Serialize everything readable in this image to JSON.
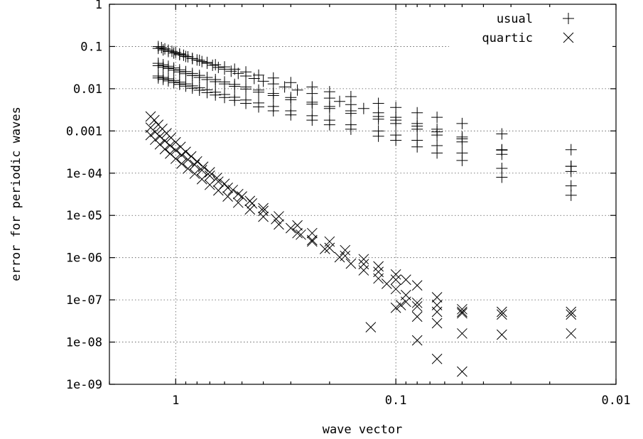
{
  "chart_data": {
    "type": "scatter",
    "xlabel": "wave vector",
    "ylabel": "error for periodic waves",
    "x_scale": "log",
    "x_reversed": true,
    "xlim": [
      2,
      0.01
    ],
    "y_scale": "log",
    "ylim": [
      1e-09,
      1
    ],
    "grid": true,
    "legend_position": "top-right",
    "x_ticks": [
      {
        "value": 1,
        "label": "1"
      },
      {
        "value": 0.1,
        "label": "0.1"
      },
      {
        "value": 0.01,
        "label": "0.01"
      }
    ],
    "y_ticks": [
      {
        "value": 1,
        "label": "1"
      },
      {
        "value": 0.1,
        "label": "0.1"
      },
      {
        "value": 0.01,
        "label": "0.01"
      },
      {
        "value": 0.001,
        "label": "0.001"
      },
      {
        "value": 0.0001,
        "label": "1e-04"
      },
      {
        "value": 1e-05,
        "label": "1e-05"
      },
      {
        "value": 1e-06,
        "label": "1e-06"
      },
      {
        "value": 1e-07,
        "label": "1e-07"
      },
      {
        "value": 1e-08,
        "label": "1e-08"
      },
      {
        "value": 1e-09,
        "label": "1e-09"
      }
    ],
    "series": [
      {
        "name": "usual",
        "marker": "plus",
        "points": [
          [
            1.2,
            0.1
          ],
          [
            1.16,
            0.094
          ],
          [
            1.12,
            0.088
          ],
          [
            1.08,
            0.082
          ],
          [
            1.04,
            0.077
          ],
          [
            1.0,
            0.072
          ],
          [
            0.96,
            0.067
          ],
          [
            0.92,
            0.062
          ],
          [
            0.88,
            0.057
          ],
          [
            0.84,
            0.052
          ],
          [
            0.8,
            0.048
          ],
          [
            0.76,
            0.044
          ],
          [
            0.72,
            0.04
          ],
          [
            0.68,
            0.036
          ],
          [
            0.64,
            0.032
          ],
          [
            0.6,
            0.029
          ],
          [
            0.56,
            0.026
          ],
          [
            0.52,
            0.023
          ],
          [
            0.48,
            0.02
          ],
          [
            0.44,
            0.0175
          ],
          [
            0.4,
            0.015
          ],
          [
            0.36,
            0.013
          ],
          [
            0.32,
            0.011
          ],
          [
            0.28,
            0.0093
          ],
          [
            0.24,
            0.0077
          ],
          [
            0.2,
            0.006
          ],
          [
            0.18,
            0.005
          ],
          [
            0.16,
            0.0042
          ],
          [
            0.14,
            0.0034
          ],
          [
            0.12,
            0.0027
          ],
          [
            0.1,
            0.0021
          ],
          [
            0.08,
            0.0015
          ],
          [
            0.065,
            0.0011
          ],
          [
            0.05,
            0.00072
          ],
          [
            0.033,
            0.00036
          ],
          [
            0.016,
            0.000145
          ],
          [
            1.2,
            0.09
          ],
          [
            1.14,
            0.083
          ],
          [
            1.08,
            0.076
          ],
          [
            1.02,
            0.07
          ],
          [
            0.96,
            0.064
          ],
          [
            0.9,
            0.058
          ],
          [
            0.84,
            0.052
          ],
          [
            0.78,
            0.047
          ],
          [
            0.72,
            0.042
          ],
          [
            0.66,
            0.037
          ],
          [
            0.6,
            0.033
          ],
          [
            0.54,
            0.029
          ],
          [
            0.48,
            0.025
          ],
          [
            0.42,
            0.021
          ],
          [
            0.36,
            0.018
          ],
          [
            0.3,
            0.014
          ],
          [
            0.24,
            0.011
          ],
          [
            0.2,
            0.0085
          ],
          [
            0.16,
            0.0065
          ],
          [
            0.12,
            0.0045
          ],
          [
            0.1,
            0.0036
          ],
          [
            0.08,
            0.0027
          ],
          [
            0.065,
            0.0021
          ],
          [
            0.05,
            0.0015
          ],
          [
            0.033,
            0.00085
          ],
          [
            0.016,
            0.00036
          ],
          [
            1.2,
            0.04
          ],
          [
            1.14,
            0.037
          ],
          [
            1.08,
            0.034
          ],
          [
            1.02,
            0.031
          ],
          [
            0.96,
            0.028
          ],
          [
            0.9,
            0.0255
          ],
          [
            0.84,
            0.023
          ],
          [
            0.78,
            0.0207
          ],
          [
            0.72,
            0.0185
          ],
          [
            0.66,
            0.0165
          ],
          [
            0.6,
            0.0145
          ],
          [
            0.54,
            0.0127
          ],
          [
            0.48,
            0.011
          ],
          [
            0.42,
            0.0093
          ],
          [
            0.36,
            0.0077
          ],
          [
            0.3,
            0.0062
          ],
          [
            0.24,
            0.0048
          ],
          [
            0.2,
            0.0038
          ],
          [
            0.16,
            0.003
          ],
          [
            0.12,
            0.0022
          ],
          [
            0.1,
            0.0018
          ],
          [
            0.08,
            0.0013
          ],
          [
            0.065,
            0.00095
          ],
          [
            0.05,
            0.00065
          ],
          [
            0.033,
            0.00035
          ],
          [
            0.016,
            0.000145
          ],
          [
            1.2,
            0.035
          ],
          [
            1.14,
            0.0325
          ],
          [
            1.08,
            0.03
          ],
          [
            1.02,
            0.0275
          ],
          [
            0.96,
            0.025
          ],
          [
            0.9,
            0.0227
          ],
          [
            0.84,
            0.0205
          ],
          [
            0.78,
            0.0185
          ],
          [
            0.72,
            0.0165
          ],
          [
            0.66,
            0.0147
          ],
          [
            0.6,
            0.013
          ],
          [
            0.54,
            0.0114
          ],
          [
            0.48,
            0.0098
          ],
          [
            0.42,
            0.0083
          ],
          [
            0.36,
            0.0069
          ],
          [
            0.3,
            0.0055
          ],
          [
            0.24,
            0.0043
          ],
          [
            0.2,
            0.0034
          ],
          [
            0.16,
            0.0026
          ],
          [
            0.12,
            0.0019
          ],
          [
            0.1,
            0.0015
          ],
          [
            0.08,
            0.0011
          ],
          [
            0.065,
            0.0008
          ],
          [
            0.05,
            0.00055
          ],
          [
            0.033,
            0.00028
          ],
          [
            0.016,
            0.00011
          ],
          [
            1.2,
            0.02
          ],
          [
            1.14,
            0.0185
          ],
          [
            1.08,
            0.0171
          ],
          [
            1.02,
            0.0157
          ],
          [
            0.96,
            0.0143
          ],
          [
            0.9,
            0.013
          ],
          [
            0.84,
            0.0117
          ],
          [
            0.78,
            0.0105
          ],
          [
            0.72,
            0.0094
          ],
          [
            0.66,
            0.0083
          ],
          [
            0.6,
            0.0073
          ],
          [
            0.54,
            0.0063
          ],
          [
            0.48,
            0.0054
          ],
          [
            0.42,
            0.0046
          ],
          [
            0.36,
            0.0038
          ],
          [
            0.3,
            0.003
          ],
          [
            0.24,
            0.0023
          ],
          [
            0.2,
            0.0018
          ],
          [
            0.16,
            0.0014
          ],
          [
            0.12,
            0.001
          ],
          [
            0.1,
            0.0008
          ],
          [
            0.08,
            0.0006
          ],
          [
            0.065,
            0.00045
          ],
          [
            0.05,
            0.0003
          ],
          [
            0.033,
            0.00013
          ],
          [
            0.016,
            5e-05
          ],
          [
            1.2,
            0.018
          ],
          [
            1.14,
            0.0166
          ],
          [
            1.08,
            0.0153
          ],
          [
            1.02,
            0.014
          ],
          [
            0.96,
            0.0127
          ],
          [
            0.9,
            0.0115
          ],
          [
            0.84,
            0.0103
          ],
          [
            0.78,
            0.0092
          ],
          [
            0.72,
            0.0081
          ],
          [
            0.66,
            0.0071
          ],
          [
            0.6,
            0.0062
          ],
          [
            0.54,
            0.0053
          ],
          [
            0.48,
            0.0045
          ],
          [
            0.42,
            0.0037
          ],
          [
            0.36,
            0.003
          ],
          [
            0.3,
            0.0024
          ],
          [
            0.24,
            0.0018
          ],
          [
            0.2,
            0.0014
          ],
          [
            0.16,
            0.0011
          ],
          [
            0.12,
            0.00075
          ],
          [
            0.1,
            0.0006
          ],
          [
            0.08,
            0.00042
          ],
          [
            0.065,
            0.0003
          ],
          [
            0.05,
            0.0002
          ],
          [
            0.033,
            8e-05
          ],
          [
            0.016,
            3e-05
          ]
        ]
      },
      {
        "name": "quartic",
        "marker": "cross",
        "points": [
          [
            1.3,
            0.0022
          ],
          [
            1.25,
            0.0018
          ],
          [
            1.2,
            0.0014
          ],
          [
            1.15,
            0.00112
          ],
          [
            1.1,
            0.00088
          ],
          [
            1.05,
            0.00069
          ],
          [
            1.0,
            0.00054
          ],
          [
            0.95,
            0.00042
          ],
          [
            0.9,
            0.00032
          ],
          [
            0.85,
            0.00025
          ],
          [
            0.8,
            0.00019
          ],
          [
            0.75,
            0.000142
          ],
          [
            0.7,
            0.000105
          ],
          [
            0.65,
            7.7e-05
          ],
          [
            0.6,
            5.6e-05
          ],
          [
            0.55,
            4e-05
          ],
          [
            0.5,
            2.8e-05
          ],
          [
            0.45,
            1.92e-05
          ],
          [
            0.4,
            1.28e-05
          ],
          [
            0.35,
            8.2e-06
          ],
          [
            0.3,
            5e-06
          ],
          [
            0.27,
            3.5e-06
          ],
          [
            0.24,
            2.4e-06
          ],
          [
            0.21,
            1.6e-06
          ],
          [
            0.18,
            1.02e-06
          ],
          [
            0.16,
            7.2e-07
          ],
          [
            0.14,
            5e-07
          ],
          [
            0.12,
            3.2e-07
          ],
          [
            0.11,
            2.4e-07
          ],
          [
            0.1,
            1.8e-07
          ],
          [
            0.09,
            1.3e-07
          ],
          [
            0.08,
            8.5e-08
          ],
          [
            0.065,
            5.2e-08
          ],
          [
            0.05,
            4.8e-08
          ],
          [
            0.033,
            5.2e-08
          ],
          [
            0.016,
            5.2e-08
          ],
          [
            1.3,
            0.0012
          ],
          [
            1.24,
            0.00094
          ],
          [
            1.18,
            0.00074
          ],
          [
            1.12,
            0.00058
          ],
          [
            1.06,
            0.00045
          ],
          [
            1.0,
            0.00035
          ],
          [
            0.94,
            0.00027
          ],
          [
            0.88,
            0.00021
          ],
          [
            0.82,
            0.000158
          ],
          [
            0.76,
            0.000118
          ],
          [
            0.7,
            8.7e-05
          ],
          [
            0.64,
            6.3e-05
          ],
          [
            0.58,
            4.5e-05
          ],
          [
            0.52,
            3.2e-05
          ],
          [
            0.46,
            2.2e-05
          ],
          [
            0.4,
            1.48e-05
          ],
          [
            0.34,
            9.5e-06
          ],
          [
            0.28,
            5.8e-06
          ],
          [
            0.24,
            3.8e-06
          ],
          [
            0.2,
            2.4e-06
          ],
          [
            0.17,
            1.5e-06
          ],
          [
            0.14,
            9.2e-07
          ],
          [
            0.12,
            6.2e-07
          ],
          [
            0.1,
            4e-07
          ],
          [
            0.09,
            3e-07
          ],
          [
            0.08,
            2.2e-07
          ],
          [
            0.065,
            1.15e-07
          ],
          [
            0.05,
            6e-08
          ],
          [
            0.033,
            4.5e-08
          ],
          [
            0.016,
            4.5e-08
          ],
          [
            1.3,
            0.0008
          ],
          [
            1.24,
            0.00062
          ],
          [
            1.18,
            0.00048
          ],
          [
            1.12,
            0.00037
          ],
          [
            1.06,
            0.00029
          ],
          [
            1.0,
            0.00022
          ],
          [
            0.94,
            0.000168
          ],
          [
            0.88,
            0.000128
          ],
          [
            0.82,
            9.7e-05
          ],
          [
            0.76,
            7.2e-05
          ],
          [
            0.7,
            5.3e-05
          ],
          [
            0.64,
            3.9e-05
          ],
          [
            0.58,
            2.8e-05
          ],
          [
            0.52,
            2e-05
          ],
          [
            0.46,
            1.38e-05
          ],
          [
            0.4,
            9.3e-06
          ],
          [
            0.34,
            6.1e-06
          ],
          [
            0.28,
            3.8e-06
          ],
          [
            0.24,
            2.6e-06
          ],
          [
            0.2,
            1.7e-06
          ],
          [
            0.17,
            1.1e-06
          ],
          [
            0.14,
            7e-07
          ],
          [
            0.12,
            4.6e-07
          ],
          [
            0.1,
            3e-07
          ],
          [
            0.13,
            2.25e-08
          ],
          [
            0.09,
            9e-08
          ],
          [
            0.08,
            4e-08
          ],
          [
            0.065,
            2.8e-08
          ],
          [
            0.05,
            1.6e-08
          ],
          [
            0.033,
            1.5e-08
          ],
          [
            0.016,
            1.6e-08
          ],
          [
            0.08,
            1.1e-08
          ],
          [
            0.065,
            4e-09
          ],
          [
            0.05,
            2e-09
          ],
          [
            0.1,
            6.5e-08
          ],
          [
            0.095,
            7.5e-08
          ],
          [
            0.08,
            7e-08
          ],
          [
            0.065,
            7.5e-08
          ],
          [
            0.05,
            5.2e-08
          ]
        ]
      }
    ]
  }
}
